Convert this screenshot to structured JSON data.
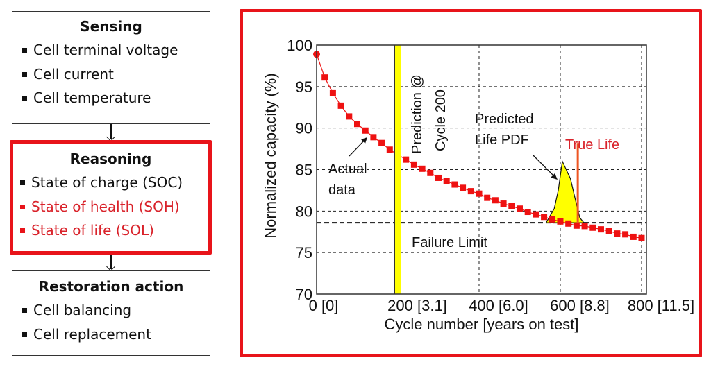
{
  "left_panel": {
    "sensing": {
      "title": "Sensing",
      "items": [
        {
          "label": "Cell terminal voltage",
          "highlighted": false
        },
        {
          "label": "Cell current",
          "highlighted": false
        },
        {
          "label": "Cell temperature",
          "highlighted": false
        }
      ]
    },
    "reasoning": {
      "title": "Reasoning",
      "items": [
        {
          "label": "State of charge (SOC)",
          "highlighted": false
        },
        {
          "label": "State of health (SOH)",
          "highlighted": true
        },
        {
          "label": "State of life (SOL)",
          "highlighted": true
        }
      ]
    },
    "restoration": {
      "title": "Restoration action",
      "items": [
        {
          "label": "Cell balancing",
          "highlighted": false
        },
        {
          "label": "Cell replacement",
          "highlighted": false
        }
      ]
    }
  },
  "colors": {
    "accent_red": "#e8141a",
    "highlight_text_red": "#d9222a",
    "marker_red": "#ee1111",
    "band_yellow": "#ffff00",
    "true_life_orange": "#ee5522"
  },
  "chart_data": {
    "type": "line",
    "title": "",
    "xlabel": "Cycle number [years on test]",
    "ylabel": "Normalized capacity (%)",
    "xlim": [
      0,
      812
    ],
    "ylim": [
      70,
      100
    ],
    "x_ticks": [
      {
        "value": 0,
        "label": "0 [0]"
      },
      {
        "value": 200,
        "label": "200 [3.1]"
      },
      {
        "value": 400,
        "label": "400 [6.0]"
      },
      {
        "value": 600,
        "label": "600 [8.8]"
      },
      {
        "value": 800,
        "label": "800 [11.5]"
      }
    ],
    "y_ticks": [
      {
        "value": 70,
        "label": "70"
      },
      {
        "value": 75,
        "label": "75"
      },
      {
        "value": 80,
        "label": "80"
      },
      {
        "value": 85,
        "label": "85"
      },
      {
        "value": 90,
        "label": "90"
      },
      {
        "value": 95,
        "label": "95"
      },
      {
        "value": 100,
        "label": "100"
      }
    ],
    "grid": true,
    "series": [
      {
        "name": "Actual data",
        "x": [
          0,
          20,
          40,
          60,
          80,
          100,
          120,
          140,
          160,
          180,
          220,
          240,
          260,
          280,
          300,
          320,
          340,
          360,
          380,
          400,
          420,
          440,
          460,
          480,
          500,
          520,
          540,
          560,
          580,
          600,
          620,
          640,
          660,
          680,
          700,
          720,
          740,
          760,
          780,
          800
        ],
        "y": [
          98.9,
          96.1,
          94.2,
          92.7,
          91.4,
          90.5,
          89.7,
          88.9,
          88.2,
          87.4,
          86.2,
          85.6,
          85.1,
          84.6,
          84.0,
          83.6,
          83.2,
          82.8,
          82.4,
          82.1,
          81.6,
          81.3,
          80.9,
          80.6,
          80.3,
          79.9,
          79.6,
          79.3,
          79.0,
          78.75,
          78.5,
          78.25,
          78.2,
          78.0,
          77.8,
          77.6,
          77.3,
          77.2,
          76.9,
          76.75
        ]
      }
    ],
    "prediction_point": {
      "cycle": 200,
      "label": "Prediction @ Cycle 200"
    },
    "failure_limit": {
      "value": 78.6,
      "label": "Failure Limit"
    },
    "predicted_life_pdf": {
      "label": "Predicted Life PDF",
      "x": [
        565,
        585,
        595,
        605,
        625,
        636,
        648,
        658
      ],
      "y": [
        78.6,
        80.3,
        82.5,
        86.0,
        83.9,
        81.6,
        79.2,
        78.6
      ]
    },
    "true_life": {
      "cycle": 643,
      "label": "True Life",
      "top": 89.2
    },
    "annotations": [
      {
        "text": "Actual data",
        "lines": [
          "Actual",
          "data"
        ]
      },
      {
        "text": "Predicted Life PDF",
        "lines": [
          "Predicted",
          "Life PDF"
        ]
      }
    ]
  }
}
